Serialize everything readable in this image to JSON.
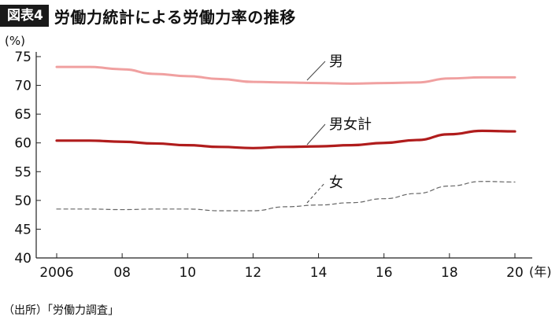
{
  "figure": {
    "badge": "図表4",
    "title": "労働力統計による労働力率の推移",
    "source": "（出所）「労働力調査」"
  },
  "chart_data": {
    "type": "line",
    "y_unit_label": "(%)",
    "x_unit_label": "(年)",
    "x": [
      2006,
      2007,
      2008,
      2009,
      2010,
      2011,
      2012,
      2013,
      2014,
      2015,
      2016,
      2017,
      2018,
      2019,
      2020
    ],
    "xticks": [
      2006,
      2008,
      2010,
      2012,
      2014,
      2016,
      2018,
      2020
    ],
    "xtick_labels": [
      "2006",
      "08",
      "10",
      "12",
      "14",
      "16",
      "18",
      "20"
    ],
    "xlim": [
      2006,
      2020
    ],
    "ylim": [
      40,
      75
    ],
    "yticks": [
      40,
      45,
      50,
      55,
      60,
      65,
      70,
      75
    ],
    "grid": false,
    "series": [
      {
        "name": "男",
        "color": "#f0a0a0",
        "style": "solid",
        "values": [
          73.2,
          73.2,
          72.8,
          72.0,
          71.6,
          71.1,
          70.6,
          70.5,
          70.4,
          70.3,
          70.4,
          70.5,
          71.2,
          71.4,
          71.4
        ]
      },
      {
        "name": "男女計",
        "color": "#b01c1c",
        "style": "solid",
        "values": [
          60.4,
          60.4,
          60.2,
          59.9,
          59.6,
          59.3,
          59.1,
          59.3,
          59.4,
          59.6,
          60.0,
          60.5,
          61.5,
          62.1,
          62.0
        ]
      },
      {
        "name": "女",
        "color": "#666666",
        "style": "dashed",
        "values": [
          48.5,
          48.5,
          48.4,
          48.5,
          48.5,
          48.2,
          48.2,
          48.9,
          49.2,
          49.6,
          50.3,
          51.2,
          52.5,
          53.3,
          53.2
        ]
      }
    ]
  }
}
